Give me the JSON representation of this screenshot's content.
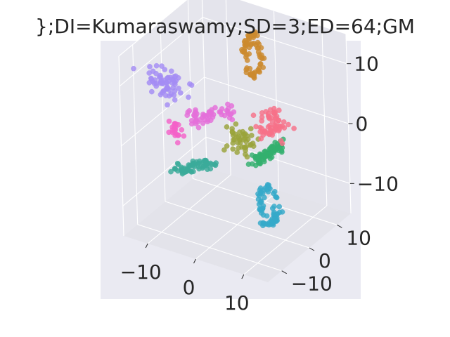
{
  "chart_data": {
    "type": "scatter",
    "projection": "3d",
    "title": "};DI=Kumaraswamy;SD=3;ED=64;GM",
    "xlabel": "",
    "ylabel": "",
    "zlabel": "",
    "xlim": [
      -15,
      15
    ],
    "ylim": [
      -15,
      15
    ],
    "zlim": [
      -15,
      15
    ],
    "x_ticks": [
      "−10",
      "0",
      "10"
    ],
    "y_ticks": [
      "−10",
      "0",
      "10"
    ],
    "z_ticks": [
      "−10",
      "0",
      "10"
    ],
    "grid": true,
    "legend": false,
    "background_color": "#eaeaf2",
    "clusters": [
      {
        "color": "#cc8a2e",
        "center": [
          -3,
          12,
          8
        ],
        "spread": [
          1.6,
          1.4,
          3.2
        ],
        "count": 70,
        "shape": "ring"
      },
      {
        "color": "#a48cf4",
        "center": [
          -13,
          -2,
          6
        ],
        "spread": [
          3.5,
          1.5,
          2.2
        ],
        "count": 65,
        "shape": "blob"
      },
      {
        "color": "#e46fd9",
        "center": [
          -4,
          -2,
          3
        ],
        "spread": [
          4.5,
          1.5,
          2.0
        ],
        "count": 55,
        "shape": "line"
      },
      {
        "color": "#f77189",
        "center": [
          6,
          3,
          2
        ],
        "spread": [
          2.0,
          2.0,
          2.5
        ],
        "count": 60,
        "shape": "blob"
      },
      {
        "color": "#9aa33a",
        "center": [
          2,
          -1,
          0
        ],
        "spread": [
          2.2,
          1.8,
          2.0
        ],
        "count": 45,
        "shape": "blob"
      },
      {
        "color": "#33b06e",
        "center": [
          5,
          3,
          -3
        ],
        "spread": [
          3.0,
          2.0,
          2.5
        ],
        "count": 75,
        "shape": "line"
      },
      {
        "color": "#36a9c9",
        "center": [
          9,
          -4,
          -8
        ],
        "spread": [
          1.8,
          1.4,
          3.0
        ],
        "count": 70,
        "shape": "ring"
      },
      {
        "color": "#3aab9a",
        "center": [
          -6,
          -5,
          -5
        ],
        "spread": [
          4.5,
          1.5,
          2.0
        ],
        "count": 60,
        "shape": "line"
      },
      {
        "color": "#f461c8",
        "center": [
          -12,
          -1,
          -2
        ],
        "spread": [
          1.5,
          1.5,
          1.5
        ],
        "count": 22,
        "shape": "blob"
      }
    ]
  }
}
